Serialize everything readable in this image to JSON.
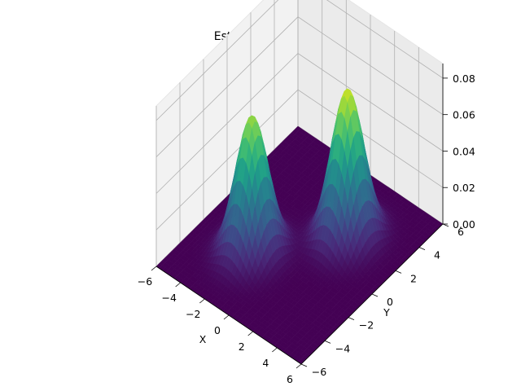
{
  "chart_data": {
    "type": "surface",
    "title": "Estimated Density",
    "xlabel": "X",
    "ylabel": "Y",
    "zlabel": "",
    "xlim": [
      -6,
      6
    ],
    "ylim": [
      -6,
      6
    ],
    "zlim": [
      0,
      0.088
    ],
    "x_ticks": [
      "−6",
      "−4",
      "−2",
      "0",
      "2",
      "4",
      "6"
    ],
    "y_ticks": [
      "−6",
      "−4",
      "−2",
      "0",
      "2",
      "4",
      "6"
    ],
    "z_ticks": [
      "0.00",
      "0.02",
      "0.04",
      "0.06",
      "0.08"
    ],
    "x_tick_values": [
      -6,
      -4,
      -2,
      0,
      2,
      4,
      6
    ],
    "y_tick_values": [
      -6,
      -4,
      -2,
      0,
      2,
      4,
      6
    ],
    "z_tick_values": [
      0,
      0.02,
      0.04,
      0.06,
      0.08
    ],
    "colormap": "viridis",
    "grid": true,
    "peaks": [
      {
        "x": -2.0,
        "y": -2.0,
        "height": 0.075
      },
      {
        "x": 2.0,
        "y": 2.0,
        "height": 0.082
      }
    ]
  }
}
